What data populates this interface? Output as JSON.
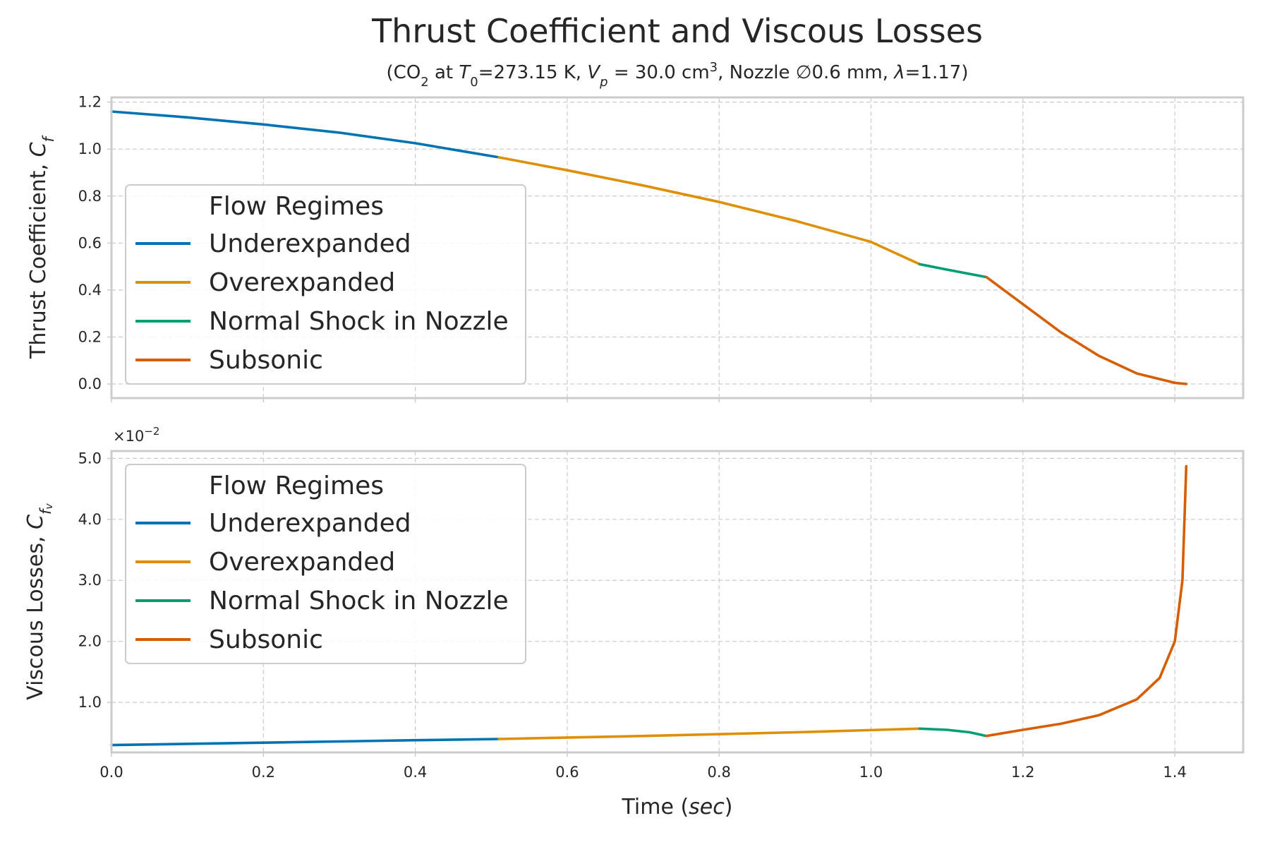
{
  "figure": {
    "title": "Thrust Coefficient and Viscous Losses",
    "subtitle_parts": [
      "(CO",
      "2",
      " at ",
      "T",
      "0",
      "=273.15 K, ",
      "V",
      "p",
      " = 30.0 cm",
      "3",
      ", Nozzle ∅0.6 mm, ",
      "λ",
      "=1.17)"
    ]
  },
  "colors": {
    "underexpanded": "#0173b2",
    "overexpanded": "#de8f05",
    "normal_shock": "#029e73",
    "subsonic": "#d55e00"
  },
  "chart_data": [
    {
      "type": "line",
      "ylabel_parts": [
        "Thrust Coefficient, ",
        "C",
        "f"
      ],
      "xlim": [
        0.0,
        1.49
      ],
      "ylim": [
        -0.06,
        1.22
      ],
      "yticks": [
        0.0,
        0.2,
        0.4,
        0.6,
        0.8,
        1.0,
        1.2
      ],
      "yticklabels": [
        "0.0",
        "0.2",
        "0.4",
        "0.6",
        "0.8",
        "1.0",
        "1.2"
      ],
      "grid": true,
      "legend": {
        "title": "Flow Regimes",
        "placement": "center-left",
        "entries": [
          "Underexpanded",
          "Overexpanded",
          "Normal Shock in Nozzle",
          "Subsonic"
        ]
      },
      "series": [
        {
          "name": "Underexpanded",
          "x": [
            0.0,
            0.1,
            0.2,
            0.3,
            0.4,
            0.51
          ],
          "y": [
            1.16,
            1.135,
            1.105,
            1.07,
            1.025,
            0.965
          ]
        },
        {
          "name": "Overexpanded",
          "x": [
            0.51,
            0.6,
            0.7,
            0.8,
            0.9,
            1.0,
            1.064
          ],
          "y": [
            0.965,
            0.91,
            0.845,
            0.775,
            0.695,
            0.605,
            0.51
          ]
        },
        {
          "name": "Normal Shock in Nozzle",
          "x": [
            1.064,
            1.1,
            1.152
          ],
          "y": [
            0.51,
            0.487,
            0.455
          ]
        },
        {
          "name": "Subsonic",
          "x": [
            1.152,
            1.2,
            1.25,
            1.3,
            1.35,
            1.4,
            1.415
          ],
          "y": [
            0.455,
            0.34,
            0.22,
            0.12,
            0.045,
            0.005,
            0.0
          ]
        }
      ]
    },
    {
      "type": "line",
      "ylabel_parts": [
        "Viscous Losses, ",
        "C",
        "f",
        "v"
      ],
      "offset_parts": [
        "×10",
        "−2"
      ],
      "xlabel_parts": [
        "Time (",
        "sec",
        ")"
      ],
      "xlim": [
        0.0,
        1.49
      ],
      "ylim": [
        0.0018,
        0.0512
      ],
      "xticks": [
        0.0,
        0.2,
        0.4,
        0.6,
        0.8,
        1.0,
        1.2,
        1.4
      ],
      "xticklabels": [
        "0.0",
        "0.2",
        "0.4",
        "0.6",
        "0.8",
        "1.0",
        "1.2",
        "1.4"
      ],
      "yticks": [
        0.01,
        0.02,
        0.03,
        0.04,
        0.05
      ],
      "yticklabels": [
        "1.0",
        "2.0",
        "3.0",
        "4.0",
        "5.0"
      ],
      "grid": true,
      "legend": {
        "title": "Flow Regimes",
        "placement": "top-left",
        "entries": [
          "Underexpanded",
          "Overexpanded",
          "Normal Shock in Nozzle",
          "Subsonic"
        ]
      },
      "series": [
        {
          "name": "Underexpanded",
          "x": [
            0.0,
            0.2,
            0.4,
            0.51
          ],
          "y": [
            0.003,
            0.0034,
            0.0038,
            0.004
          ]
        },
        {
          "name": "Overexpanded",
          "x": [
            0.51,
            0.7,
            0.9,
            1.064
          ],
          "y": [
            0.004,
            0.0045,
            0.0051,
            0.0057
          ]
        },
        {
          "name": "Normal Shock in Nozzle",
          "x": [
            1.064,
            1.1,
            1.13,
            1.152
          ],
          "y": [
            0.0057,
            0.0055,
            0.0051,
            0.0045
          ]
        },
        {
          "name": "Subsonic",
          "x": [
            1.152,
            1.2,
            1.25,
            1.3,
            1.35,
            1.38,
            1.4,
            1.41,
            1.415
          ],
          "y": [
            0.0045,
            0.0055,
            0.0065,
            0.0079,
            0.0105,
            0.014,
            0.02,
            0.03,
            0.0487
          ]
        }
      ]
    }
  ]
}
